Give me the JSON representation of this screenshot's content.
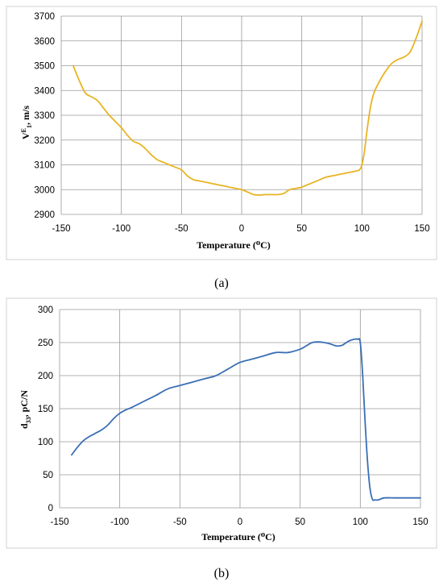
{
  "chart_data": [
    {
      "type": "line",
      "caption": "(a)",
      "xlabel": "Temperature (⁰C)",
      "ylabel_main": "V",
      "ylabel_sup": "E",
      "ylabel_sub": "1",
      "ylabel_rest": ", m/s",
      "xlim": [
        -150,
        150
      ],
      "ylim": [
        2900,
        3700
      ],
      "x_ticks": [
        -150,
        -100,
        -50,
        0,
        50,
        100,
        150
      ],
      "y_ticks": [
        2900,
        3000,
        3100,
        3200,
        3300,
        3400,
        3500,
        3600,
        3700
      ],
      "grid": true,
      "color": "#E8B423",
      "series": [
        {
          "x": [
            -140,
            -135,
            -130,
            -125,
            -120,
            -115,
            -110,
            -105,
            -100,
            -95,
            -90,
            -85,
            -80,
            -75,
            -70,
            -65,
            -60,
            -55,
            -50,
            -45,
            -40,
            -35,
            -30,
            -25,
            -20,
            -15,
            -10,
            -5,
            0,
            5,
            10,
            15,
            20,
            25,
            30,
            35,
            40,
            45,
            50,
            55,
            60,
            65,
            70,
            75,
            80,
            85,
            90,
            95,
            98,
            100,
            102,
            104,
            107,
            110,
            115,
            120,
            125,
            130,
            135,
            140,
            145,
            150
          ],
          "y": [
            3500,
            3440,
            3390,
            3375,
            3360,
            3330,
            3300,
            3275,
            3250,
            3220,
            3195,
            3185,
            3165,
            3140,
            3120,
            3110,
            3100,
            3090,
            3080,
            3055,
            3040,
            3035,
            3030,
            3025,
            3020,
            3015,
            3010,
            3005,
            3000,
            2990,
            2980,
            2978,
            2980,
            2980,
            2980,
            2985,
            3000,
            3005,
            3010,
            3020,
            3030,
            3040,
            3050,
            3055,
            3060,
            3065,
            3070,
            3075,
            3080,
            3100,
            3150,
            3230,
            3330,
            3390,
            3440,
            3480,
            3510,
            3525,
            3535,
            3555,
            3610,
            3680
          ]
        }
      ]
    },
    {
      "type": "line",
      "caption": "(b)",
      "xlabel": "Temperature (⁰C)",
      "ylabel_main": "d",
      "ylabel_sup": "",
      "ylabel_sub": "33",
      "ylabel_rest": ", pC/N",
      "xlim": [
        -150,
        150
      ],
      "ylim": [
        0,
        300
      ],
      "x_ticks": [
        -150,
        -100,
        -50,
        0,
        50,
        100,
        150
      ],
      "y_ticks": [
        0,
        50,
        100,
        150,
        200,
        250,
        300
      ],
      "grid": true,
      "color": "#3A6FB4",
      "series": [
        {
          "x": [
            -140,
            -135,
            -130,
            -125,
            -120,
            -115,
            -110,
            -105,
            -100,
            -95,
            -90,
            -80,
            -70,
            -60,
            -50,
            -40,
            -30,
            -20,
            -10,
            0,
            10,
            20,
            30,
            40,
            50,
            55,
            60,
            65,
            70,
            75,
            80,
            85,
            90,
            95,
            98,
            100,
            102,
            104,
            106,
            108,
            110,
            112,
            115,
            120,
            130,
            140,
            150
          ],
          "y": [
            80,
            92,
            102,
            108,
            113,
            118,
            125,
            135,
            143,
            148,
            152,
            161,
            170,
            180,
            185,
            190,
            195,
            200,
            210,
            220,
            225,
            230,
            235,
            235,
            240,
            245,
            250,
            251,
            250,
            248,
            245,
            246,
            252,
            255,
            255,
            250,
            200,
            130,
            70,
            30,
            13,
            12,
            12,
            15,
            15,
            15,
            15
          ]
        }
      ]
    }
  ]
}
